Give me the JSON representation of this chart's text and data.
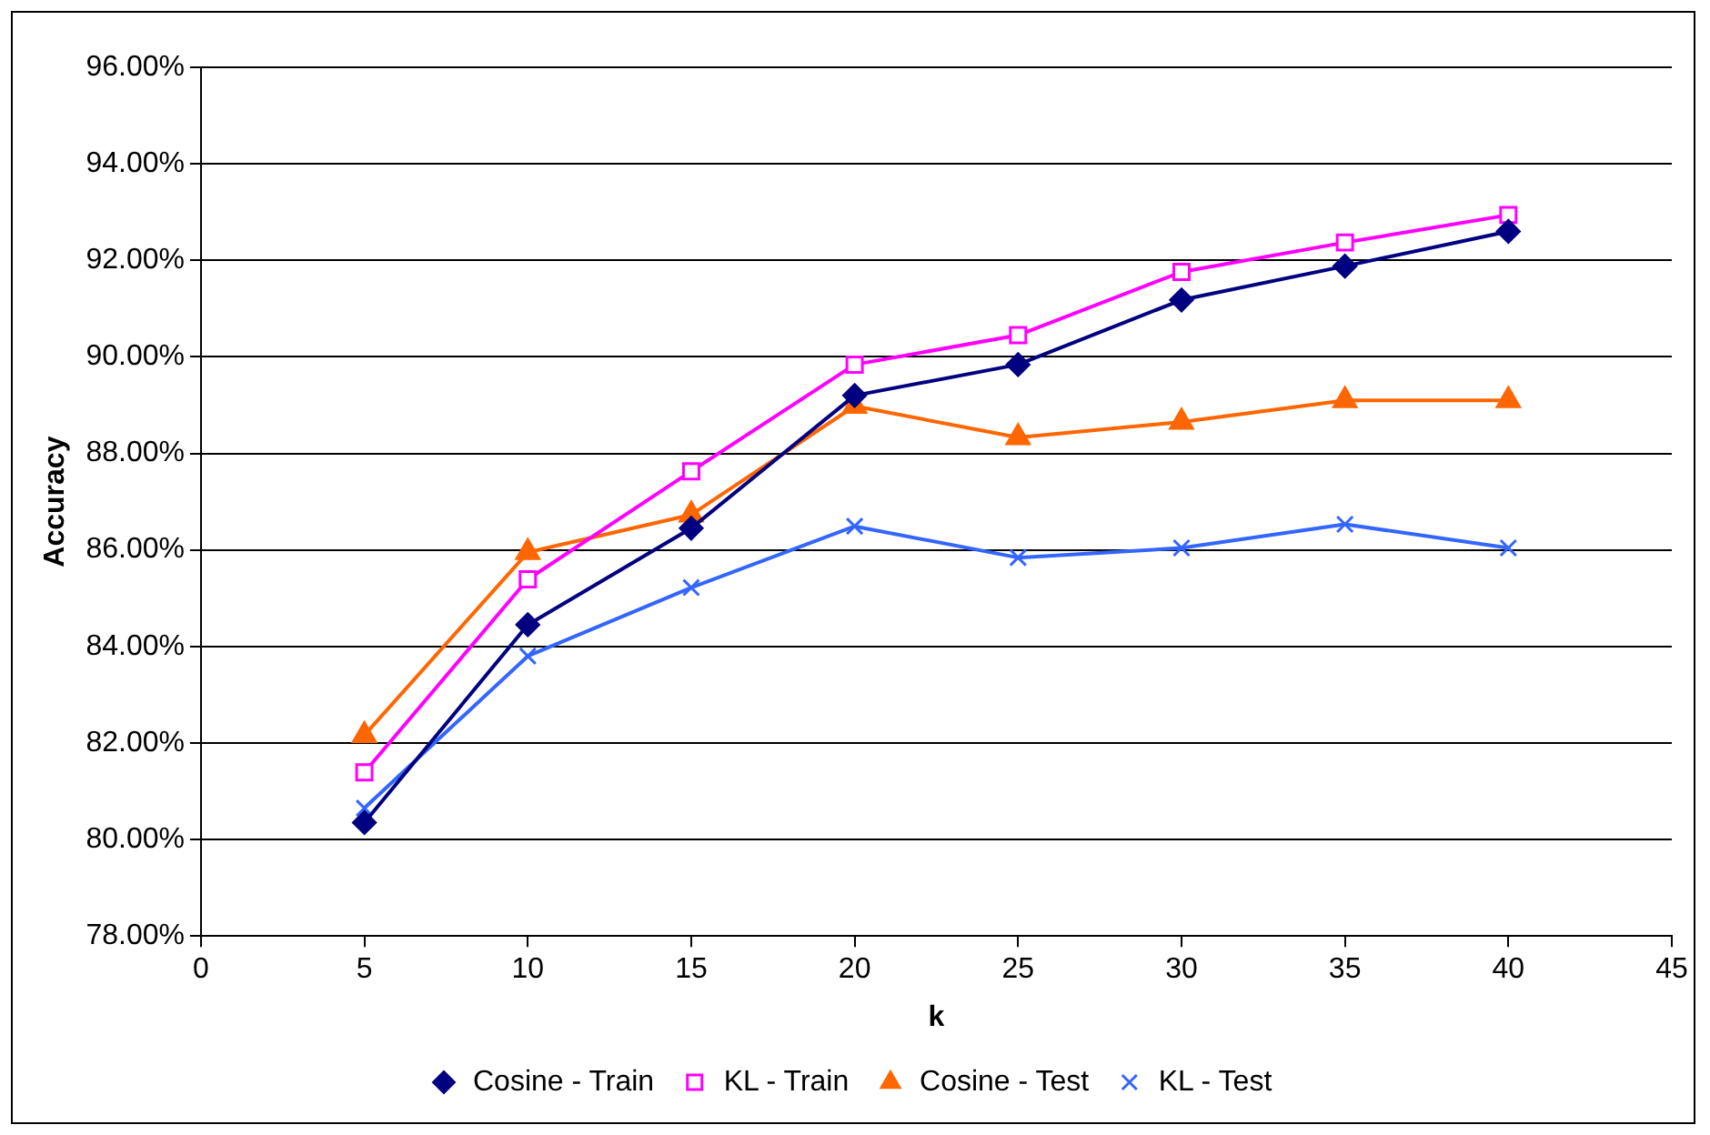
{
  "chart_data": {
    "type": "line",
    "xlabel": "k",
    "ylabel": "Accuracy",
    "x": [
      5,
      10,
      15,
      20,
      25,
      30,
      35,
      40
    ],
    "series": [
      {
        "name": "Cosine - Train",
        "color": "#000080",
        "marker": "diamond",
        "values": [
          80.35,
          84.45,
          86.45,
          89.2,
          89.84,
          91.18,
          91.88,
          92.6
        ]
      },
      {
        "name": "KL - Train",
        "color": "#ff00ff",
        "marker": "square",
        "values": [
          81.39,
          85.39,
          87.63,
          89.84,
          90.45,
          91.76,
          92.37,
          92.94
        ]
      },
      {
        "name": "Cosine - Test",
        "color": "#ff6600",
        "marker": "triangle",
        "values": [
          82.16,
          85.95,
          86.73,
          88.98,
          88.33,
          88.65,
          89.1,
          89.1
        ]
      },
      {
        "name": "KL - Test",
        "color": "#3366ff",
        "marker": "cross",
        "values": [
          80.65,
          83.8,
          85.22,
          86.49,
          85.84,
          86.04,
          86.53,
          86.04
        ]
      }
    ],
    "xlim": [
      0,
      45
    ],
    "xticks": [
      0,
      5,
      10,
      15,
      20,
      25,
      30,
      35,
      40,
      45
    ],
    "ylim": [
      78,
      96
    ],
    "yticks": [
      {
        "value": 78,
        "label": "78.00%"
      },
      {
        "value": 80,
        "label": "80.00%"
      },
      {
        "value": 82,
        "label": "82.00%"
      },
      {
        "value": 84,
        "label": "84.00%"
      },
      {
        "value": 86,
        "label": "86.00%"
      },
      {
        "value": 88,
        "label": "88.00%"
      },
      {
        "value": 90,
        "label": "90.00%"
      },
      {
        "value": 92,
        "label": "92.00%"
      },
      {
        "value": 94,
        "label": "94.00%"
      },
      {
        "value": 96,
        "label": "96.00%"
      }
    ],
    "grid": "y",
    "legend": "bottom",
    "line_style": "solid"
  }
}
